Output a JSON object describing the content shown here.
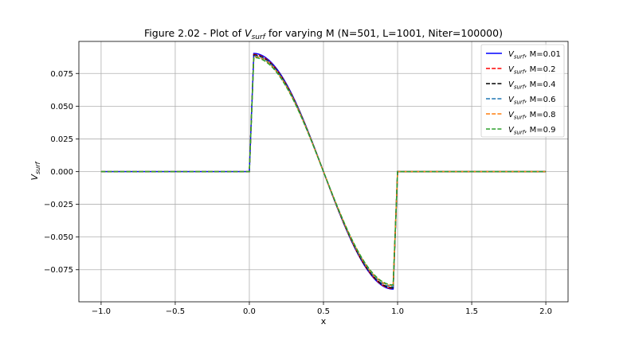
{
  "chart_data": {
    "type": "line",
    "title": "Figure 2.02 - Plot of V_surf for varying M (N=501, L=1001, Niter=100000)",
    "title_parts": {
      "prefix": "Figure 2.02 - Plot of ",
      "var": "V",
      "sub": "surf",
      "suffix": " for varying M (N=501, L=1001, Niter=100000)"
    },
    "xlabel": "x",
    "ylabel": {
      "var": "V",
      "sub": "surf"
    },
    "xlim": [
      -1.15,
      2.15
    ],
    "ylim": [
      -0.0995,
      0.0995
    ],
    "xticks": [
      -1.0,
      -0.5,
      0.0,
      0.5,
      1.0,
      1.5,
      2.0
    ],
    "xtick_labels": [
      "−1.0",
      "−0.5",
      "0.0",
      "0.5",
      "1.0",
      "1.5",
      "2.0"
    ],
    "yticks": [
      -0.075,
      -0.05,
      -0.025,
      0.0,
      0.025,
      0.05,
      0.075
    ],
    "ytick_labels": [
      "−0.075",
      "−0.050",
      "−0.025",
      "0.000",
      "0.025",
      "0.050",
      "0.075"
    ],
    "grid": true,
    "legend_position": "top-right",
    "series": [
      {
        "name": "M=0.01",
        "label_var": "V",
        "label_sub": "surf",
        "label_rest": ", M=0.01",
        "color": "#0000ff",
        "dash": "solid",
        "peak": 0.0903,
        "trough": -0.0898
      },
      {
        "name": "M=0.2",
        "label_var": "V",
        "label_sub": "surf",
        "label_rest": ", M=0.2",
        "color": "#ff0000",
        "dash": "dashed",
        "peak": 0.0895,
        "trough": -0.0893
      },
      {
        "name": "M=0.4",
        "label_var": "V",
        "label_sub": "surf",
        "label_rest": ", M=0.4",
        "color": "#000000",
        "dash": "dashed",
        "peak": 0.089,
        "trough": -0.0888
      },
      {
        "name": "M=0.6",
        "label_var": "V",
        "label_sub": "surf",
        "label_rest": ", M=0.6",
        "color": "#1f77b4",
        "dash": "dashed",
        "peak": 0.0885,
        "trough": -0.088
      },
      {
        "name": "M=0.8",
        "label_var": "V",
        "label_sub": "surf",
        "label_rest": ", M=0.8",
        "color": "#ff7f0e",
        "dash": "dashed",
        "peak": 0.0878,
        "trough": -0.0872
      },
      {
        "name": "M=0.9",
        "label_var": "V",
        "label_sub": "surf",
        "label_rest": ", M=0.9",
        "color": "#2ca02c",
        "dash": "dashed",
        "peak": 0.0872,
        "trough": -0.0866
      }
    ],
    "curve_shape": {
      "x_range": [
        -1.0,
        2.0
      ],
      "zero_before": 0.0,
      "zero_after": 1.0,
      "peak_x": 0.03,
      "trough_x": 0.97,
      "mid_zero_x": 0.5
    }
  }
}
